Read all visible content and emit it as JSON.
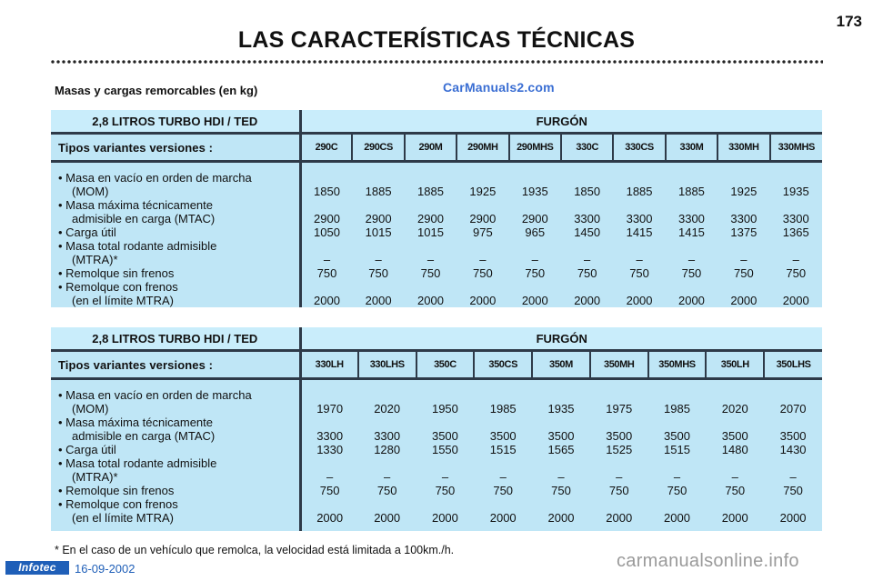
{
  "page": {
    "title": "LAS CARACTERÍSTICAS TÉCNICAS",
    "page_number": "173",
    "section_title": "Masas y cargas remorcables (en kg)",
    "watermark_top": "CarManuals2.com",
    "footnote": "* En el caso de un vehículo que remolca, la velocidad está limitada a 100km./h.",
    "footer_logo": "Infotec",
    "footer_date": "16-09-2002",
    "watermark_bottom": "carmanualsonline.info"
  },
  "tables": [
    {
      "engine": "2,8 LITROS TURBO HDI / TED",
      "body_type": "FURGÓN",
      "variants_label": "Tipos variantes versiones :",
      "variants": [
        "290C",
        "290CS",
        "290M",
        "290MH",
        "290MHS",
        "330C",
        "330CS",
        "330M",
        "330MH",
        "330MHS"
      ],
      "rows_labels": [
        [
          "• Masa en vacío en orden de marcha",
          "(MOM)"
        ],
        [
          "• Masa máxima técnicamente",
          "admisible en carga (MTAC)"
        ],
        [
          "• Carga útil"
        ],
        [
          "• Masa total rodante admisible",
          "(MTRA)*"
        ],
        [
          "• Remolque sin frenos"
        ],
        [
          "• Remolque con frenos",
          "(en el límite MTRA)"
        ]
      ],
      "values": {
        "mom": [
          "1850",
          "1885",
          "1885",
          "1925",
          "1935",
          "1850",
          "1885",
          "1885",
          "1925",
          "1935"
        ],
        "mtac": [
          "2900",
          "2900",
          "2900",
          "2900",
          "2900",
          "3300",
          "3300",
          "3300",
          "3300",
          "3300"
        ],
        "carga": [
          "1050",
          "1015",
          "1015",
          "975",
          "965",
          "1450",
          "1415",
          "1415",
          "1375",
          "1365"
        ],
        "mtra": [
          "–",
          "–",
          "–",
          "–",
          "–",
          "–",
          "–",
          "–",
          "–",
          "–"
        ],
        "sin_frenos": [
          "750",
          "750",
          "750",
          "750",
          "750",
          "750",
          "750",
          "750",
          "750",
          "750"
        ],
        "con_frenos": [
          "2000",
          "2000",
          "2000",
          "2000",
          "2000",
          "2000",
          "2000",
          "2000",
          "2000",
          "2000"
        ]
      }
    },
    {
      "engine": "2,8 LITROS TURBO HDI / TED",
      "body_type": "FURGÓN",
      "variants_label": "Tipos variantes versiones :",
      "variants": [
        "330LH",
        "330LHS",
        "350C",
        "350CS",
        "350M",
        "350MH",
        "350MHS",
        "350LH",
        "350LHS"
      ],
      "rows_labels": [
        [
          "• Masa en vacío en orden de marcha",
          "(MOM)"
        ],
        [
          "• Masa máxima técnicamente",
          "admisible en carga (MTAC)"
        ],
        [
          "• Carga útil"
        ],
        [
          "• Masa total rodante admisible",
          "(MTRA)*"
        ],
        [
          "• Remolque sin frenos"
        ],
        [
          "• Remolque con frenos",
          "(en el límite MTRA)"
        ]
      ],
      "values": {
        "mom": [
          "1970",
          "2020",
          "1950",
          "1985",
          "1935",
          "1975",
          "1985",
          "2020",
          "2070"
        ],
        "mtac": [
          "3300",
          "3300",
          "3500",
          "3500",
          "3500",
          "3500",
          "3500",
          "3500",
          "3500"
        ],
        "carga": [
          "1330",
          "1280",
          "1550",
          "1515",
          "1565",
          "1525",
          "1515",
          "1480",
          "1430"
        ],
        "mtra": [
          "–",
          "–",
          "–",
          "–",
          "–",
          "–",
          "–",
          "–",
          "–"
        ],
        "sin_frenos": [
          "750",
          "750",
          "750",
          "750",
          "750",
          "750",
          "750",
          "750",
          "750"
        ],
        "con_frenos": [
          "2000",
          "2000",
          "2000",
          "2000",
          "2000",
          "2000",
          "2000",
          "2000",
          "2000"
        ]
      }
    }
  ]
}
